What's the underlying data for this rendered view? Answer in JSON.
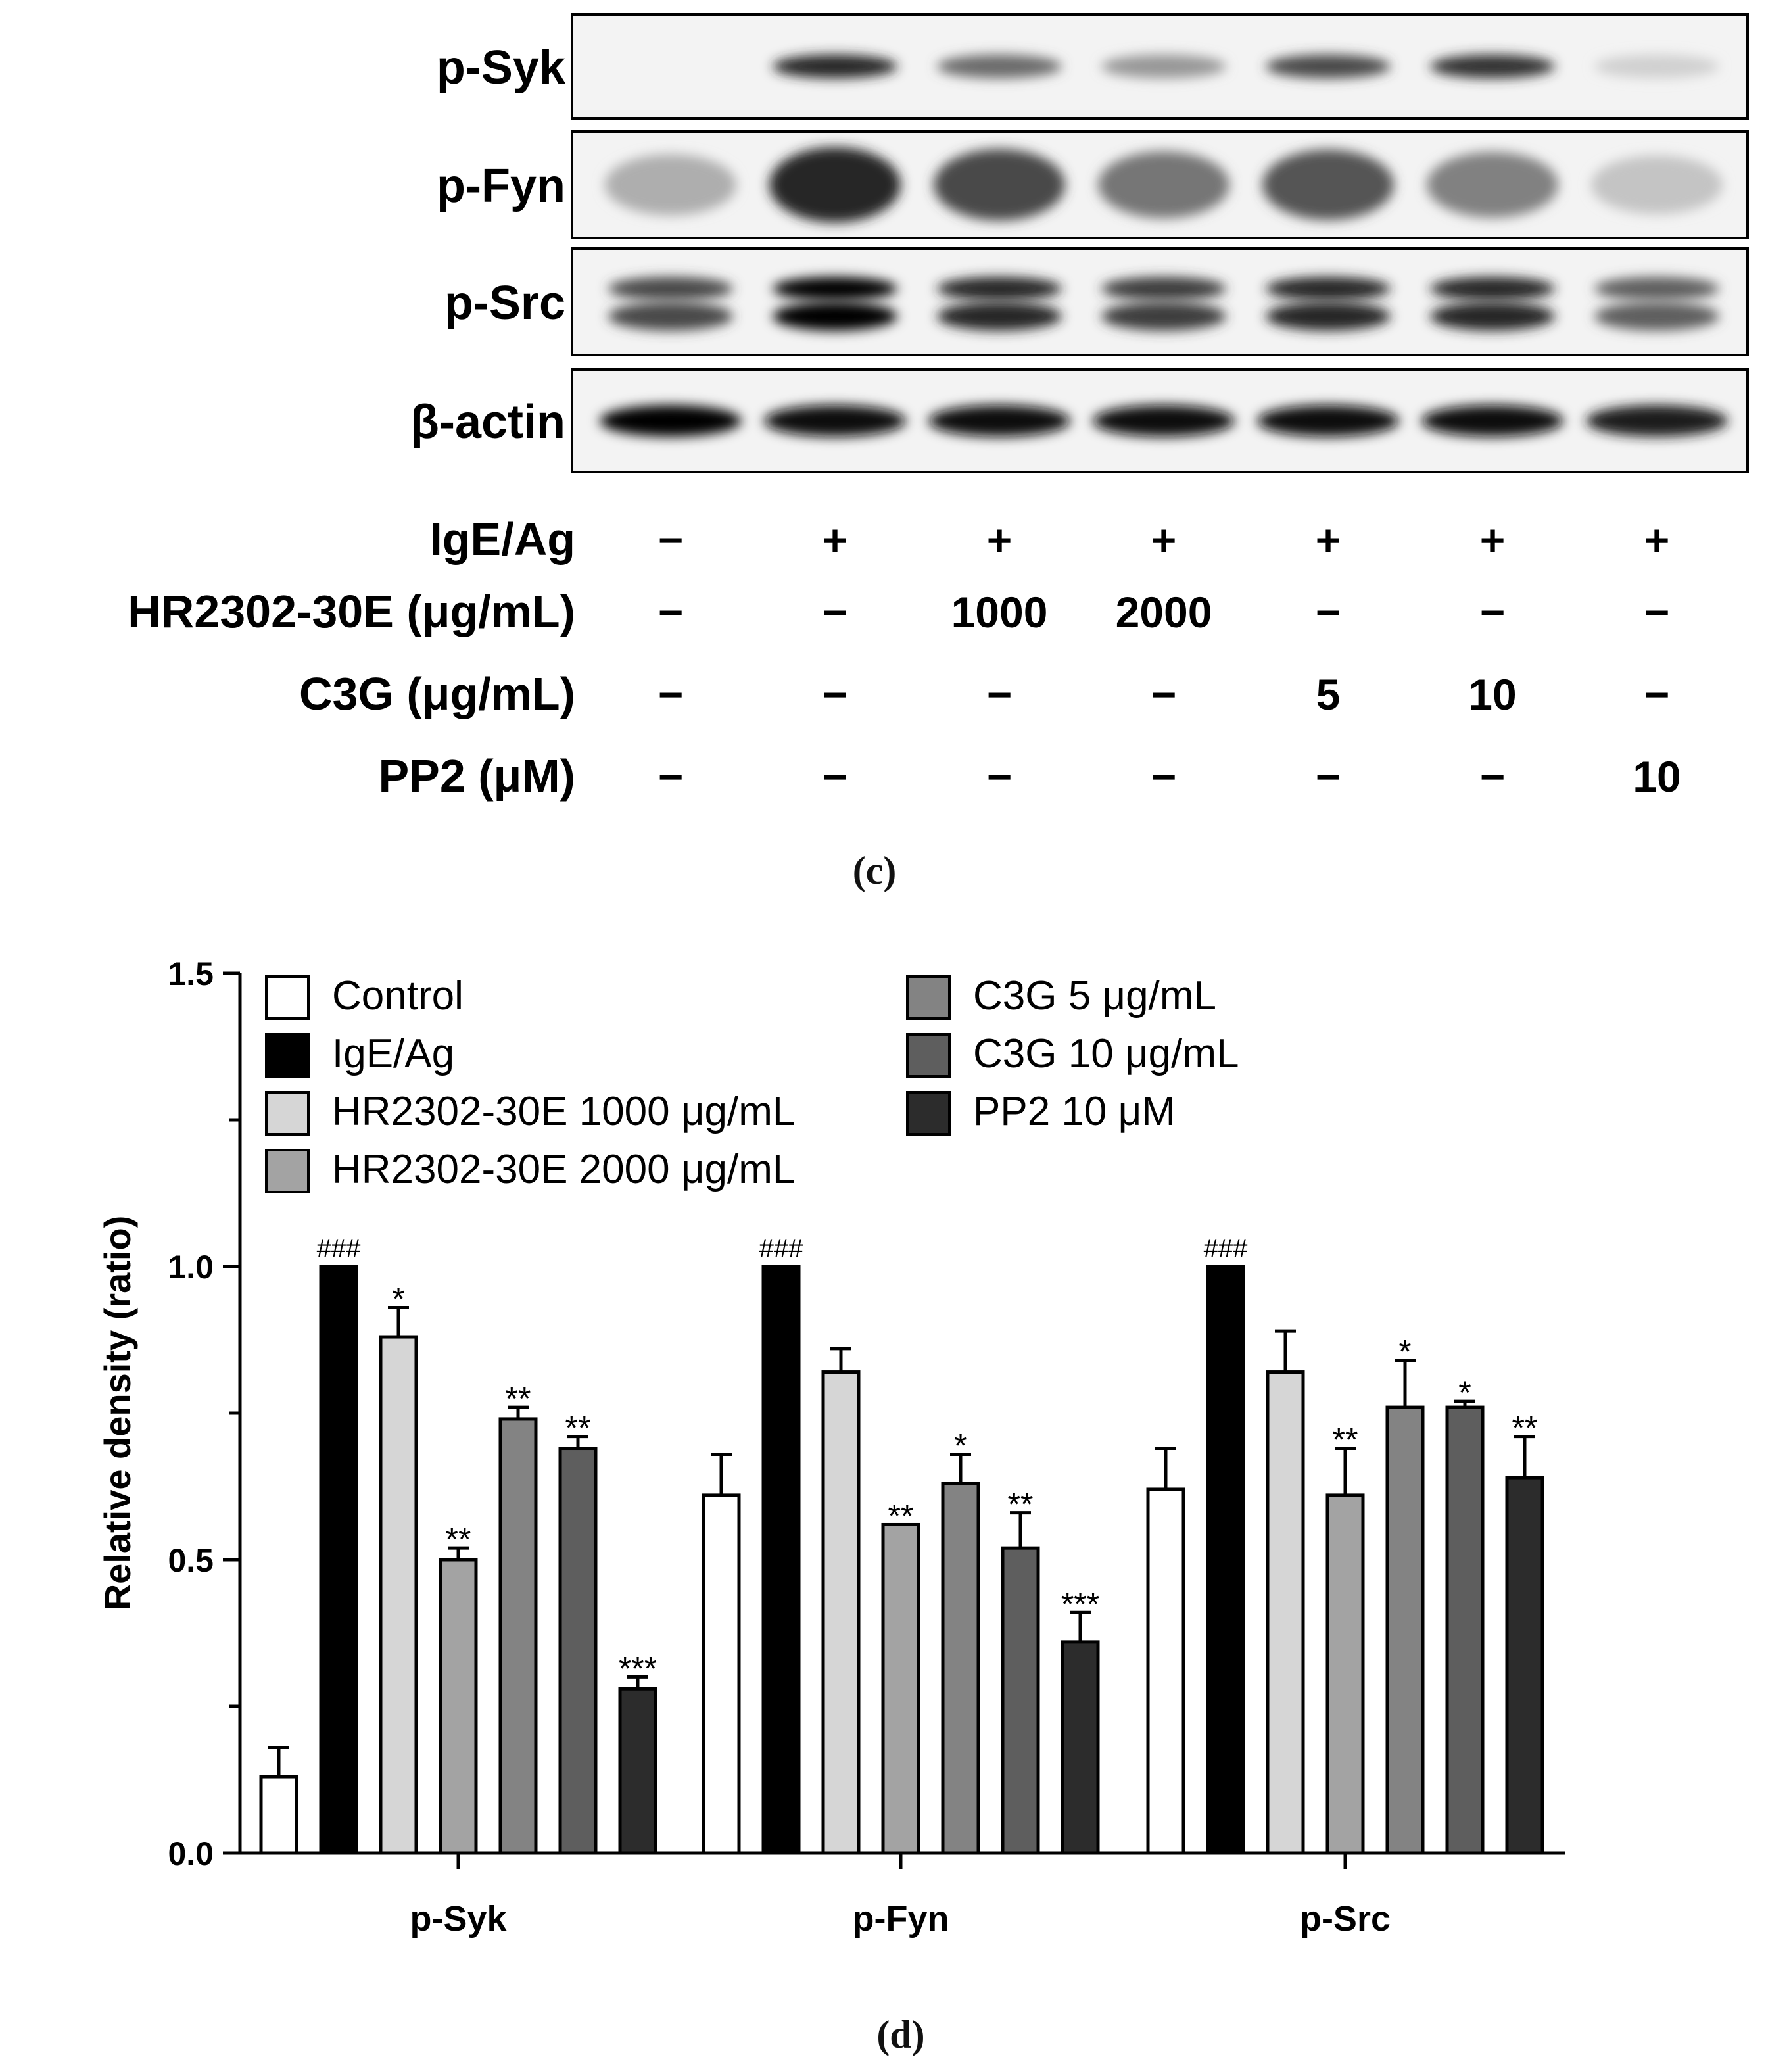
{
  "blot": {
    "rows": [
      "p-Syk",
      "p-Fyn",
      "p-Src",
      "β-actin"
    ],
    "treatment_rows": [
      {
        "label": "IgE/Ag",
        "values": [
          "−",
          "+",
          "+",
          "+",
          "+",
          "+",
          "+"
        ]
      },
      {
        "label": "HR2302-30E (μg/mL)",
        "values": [
          "−",
          "−",
          "1000",
          "2000",
          "−",
          "−",
          "−"
        ]
      },
      {
        "label": "C3G (μg/mL)",
        "values": [
          "−",
          "−",
          "−",
          "−",
          "5",
          "10",
          "−"
        ]
      },
      {
        "label": "PP2 (μM)",
        "values": [
          "−",
          "−",
          "−",
          "−",
          "−",
          "−",
          "10"
        ]
      }
    ],
    "band_intensity": {
      "p-Syk": [
        0.0,
        0.85,
        0.55,
        0.35,
        0.7,
        0.8,
        0.1
      ],
      "p-Fyn": [
        0.25,
        0.85,
        0.7,
        0.5,
        0.65,
        0.45,
        0.15
      ],
      "p-Src": [
        0.7,
        1.0,
        0.85,
        0.75,
        0.85,
        0.85,
        0.6
      ],
      "β-actin": [
        1.0,
        0.95,
        0.95,
        0.95,
        0.95,
        0.95,
        0.9
      ]
    }
  },
  "panel_labels": {
    "c": "(c)",
    "d": "(d)"
  },
  "chart_data": {
    "type": "bar",
    "ylabel": "Relative density (ratio)",
    "ylim": [
      0,
      1.5
    ],
    "yticks": [
      "0.0",
      "0.5",
      "1.0",
      "1.5"
    ],
    "categories": [
      "p-Syk",
      "p-Fyn",
      "p-Src"
    ],
    "legend_position": "top-left",
    "series": [
      {
        "name": "Control",
        "color": "#ffffff",
        "values": [
          0.13,
          0.61,
          0.62
        ],
        "errors": [
          0.05,
          0.07,
          0.07
        ],
        "annotations": [
          "",
          "",
          ""
        ]
      },
      {
        "name": "IgE/Ag",
        "color": "#000000",
        "values": [
          1.0,
          1.0,
          1.0
        ],
        "errors": [
          0,
          0,
          0
        ],
        "annotations": [
          "###",
          "###",
          "###"
        ]
      },
      {
        "name": "HR2302-30E 1000 μg/mL",
        "color": "#d6d6d6",
        "values": [
          0.88,
          0.82,
          0.82
        ],
        "errors": [
          0.05,
          0.04,
          0.07
        ],
        "annotations": [
          "*",
          "",
          ""
        ]
      },
      {
        "name": "HR2302-30E 2000 μg/mL",
        "color": "#a3a3a3",
        "values": [
          0.5,
          0.56,
          0.61
        ],
        "errors": [
          0.02,
          0.0,
          0.08
        ],
        "annotations": [
          "**",
          "**",
          "**"
        ]
      },
      {
        "name": "C3G 5 μg/mL",
        "color": "#838383",
        "values": [
          0.74,
          0.63,
          0.76
        ],
        "errors": [
          0.02,
          0.05,
          0.08
        ],
        "annotations": [
          "**",
          "*",
          "*"
        ]
      },
      {
        "name": "C3G 10 μg/mL",
        "color": "#5e5e5e",
        "values": [
          0.69,
          0.52,
          0.76
        ],
        "errors": [
          0.02,
          0.06,
          0.01
        ],
        "annotations": [
          "**",
          "**",
          "*"
        ]
      },
      {
        "name": "PP2 10 μM",
        "color": "#2c2c2c",
        "values": [
          0.28,
          0.36,
          0.64
        ],
        "errors": [
          0.02,
          0.05,
          0.07
        ],
        "annotations": [
          "***",
          "***",
          "**"
        ]
      }
    ]
  }
}
